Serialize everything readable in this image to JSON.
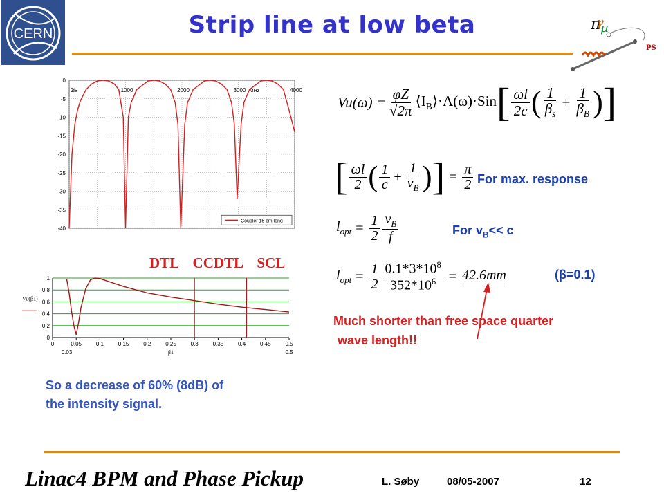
{
  "title": "Strip line at low beta",
  "cern_logo_text": "CERN",
  "ps_logo_text": "PS",
  "chart_data": [
    {
      "type": "line",
      "x": [
        0,
        50,
        100,
        150,
        200,
        300,
        400,
        500,
        600,
        700,
        800,
        880,
        960,
        1000,
        1050,
        1100,
        1200,
        1400,
        1500,
        1600,
        1700,
        1800,
        1880,
        1930,
        1980,
        2050,
        2100,
        2200,
        2400,
        2500,
        2600,
        2700,
        2800,
        2880,
        2930,
        2980,
        3050,
        3100,
        3200,
        3400,
        3500,
        3600,
        3700,
        3800,
        3900,
        4000
      ],
      "series": [
        {
          "name": "Coupler 15 cm long",
          "values": [
            -40,
            -20,
            -12,
            -8,
            -5.5,
            -2.5,
            -1,
            -0.2,
            0,
            -0.2,
            -1,
            -2.5,
            -10,
            -40,
            -10,
            -6,
            -2.5,
            -0.2,
            0,
            -0.2,
            -1,
            -2.5,
            -6,
            -12,
            -40,
            -12,
            -6,
            -2.5,
            -0.2,
            0,
            -0.2,
            -1,
            -2.5,
            -6,
            -12,
            -32,
            -12,
            -6,
            -2.5,
            -0.2,
            0,
            -0.2,
            -1,
            -2.5,
            -8,
            -14
          ]
        }
      ],
      "xtick_labels": [
        "0",
        "1000",
        "2000",
        "3000",
        "4000"
      ],
      "xunit": "MHz",
      "yunit": "dB",
      "ytick_labels": [
        "0",
        "-5",
        "-10",
        "-15",
        "-20",
        "-25",
        "-30",
        "-35",
        "-40"
      ],
      "xlim": [
        0,
        4000
      ],
      "ylim": [
        -40,
        0
      ],
      "grid": true,
      "legend": "bottom-right"
    },
    {
      "type": "line",
      "x": [
        0.03,
        0.035,
        0.04,
        0.045,
        0.05,
        0.055,
        0.06,
        0.07,
        0.08,
        0.09,
        0.1,
        0.15,
        0.2,
        0.25,
        0.3,
        0.35,
        0.4,
        0.45,
        0.5
      ],
      "series": [
        {
          "name": "",
          "values": [
            0.98,
            0.75,
            0.45,
            0.2,
            0.05,
            0.25,
            0.5,
            0.82,
            0.97,
            1.0,
            0.99,
            0.86,
            0.75,
            0.68,
            0.62,
            0.56,
            0.51,
            0.47,
            0.43
          ]
        }
      ],
      "xtick_labels": [
        "0",
        "0.05",
        "0.1",
        "0.15",
        "0.2",
        "0.25",
        "0.3",
        "0.35",
        "0.4",
        "0.45",
        "0.5"
      ],
      "ytick_labels": [
        "0",
        "0.2",
        "0.4",
        "0.6",
        "0.8",
        "1"
      ],
      "xlim": [
        0,
        0.5
      ],
      "ylim": [
        0,
        1
      ],
      "ylabel": "Vu(β1)",
      "xlabel": "β1",
      "x_edge_labels": [
        "0.03",
        "0.5"
      ],
      "markers": [
        0.3,
        0.41
      ],
      "grid": true
    }
  ],
  "chart_labels": {
    "dtl": "DTL",
    "ccdtl": "CCDTL",
    "scl": "SCL"
  },
  "eq1": {
    "lhs": "Vu(ω) =",
    "f1_num": "φZ",
    "f1_den": "√2π",
    "mid": "⟨I",
    "mid_sub": "B",
    "mid2": "⟩·A(ω)·Sin",
    "f2_num": "ωl",
    "f2_den": "2c",
    "f3_den": "β",
    "f3_sub": "s",
    "f4_den": "β",
    "f4_sub": "B",
    "one": "1",
    "plus": "+"
  },
  "eq2": {
    "f1_num": "ωl",
    "f1_den": "2",
    "f2_den": "c",
    "f3_den": "v",
    "f3_sub": "B",
    "one": "1",
    "plus": "+",
    "rhs_num": "π",
    "rhs_den": "2"
  },
  "eq3": {
    "lhs": "l",
    "lhs_sub": "opt",
    "f1_num": "1",
    "f1_den": "2",
    "f2_num": "v",
    "f2_sub": "B",
    "f2_den": "f"
  },
  "eq4": {
    "lhs": "l",
    "lhs_sub": "opt",
    "f1_num": "1",
    "f1_den": "2",
    "f2_num_a": "0.1*3*10",
    "f2_num_exp": "8",
    "f2_den_a": "352*10",
    "f2_den_exp": "6",
    "result": "42.6mm"
  },
  "notes": {
    "max_response": "For max. response",
    "vb_pre": "For v",
    "vb_sub": "B",
    "vb_post": "<< c",
    "beta": "(β=0.1)",
    "shorter_line1": "Much shorter than free space quarter",
    "shorter_line2": "wave length!!",
    "decrease_line1": "So a decrease of 60% (8dB) of",
    "decrease_line2": "the intensity signal."
  },
  "footer": {
    "title": "Linac4 BPM and Phase Pickup",
    "author": "L. Søby",
    "date": "08/05-2007",
    "page": "12"
  },
  "colors": {
    "title": "#3333cc",
    "accent_line": "#e08a1e",
    "red": "#d42020",
    "note_blue": "#1a3fb0",
    "curve": "#d42020",
    "grid_green": "#22aa22"
  }
}
